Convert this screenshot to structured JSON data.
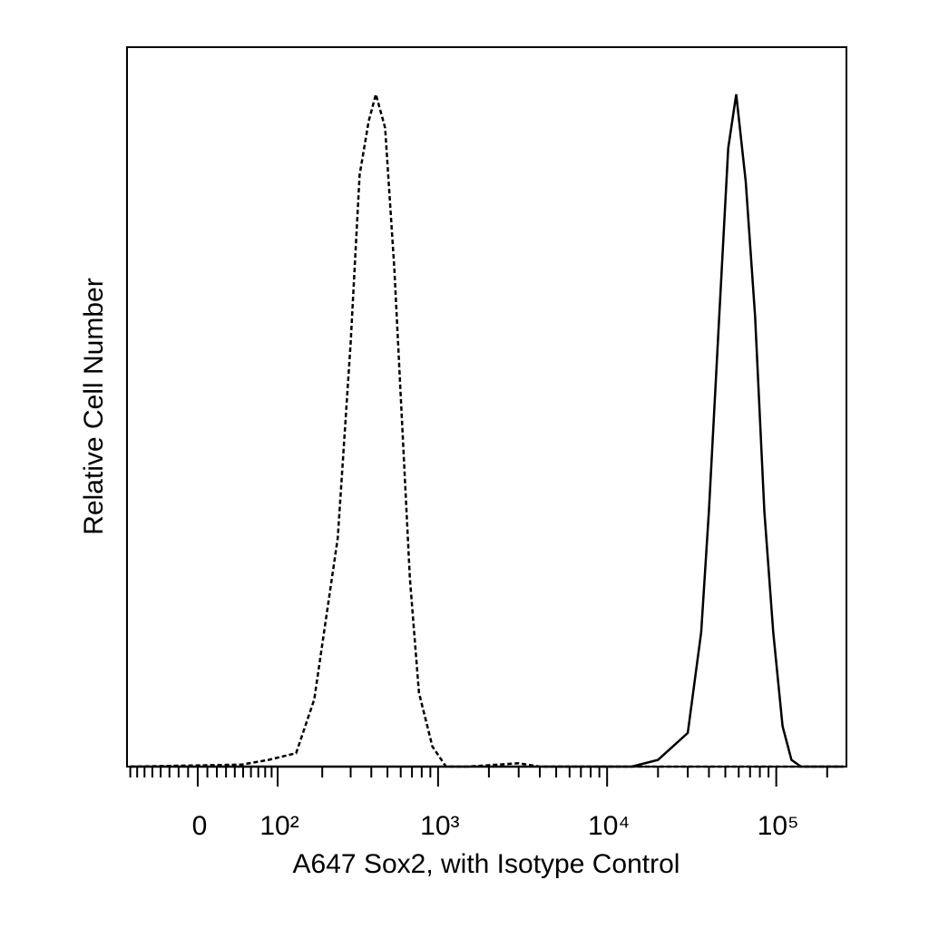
{
  "chart_data": {
    "type": "line",
    "xlabel": "A647 Sox2, with Isotype Control",
    "ylabel": "Relative Cell Number",
    "xscale": "biexponential",
    "xlim": [
      -85,
      260000
    ],
    "ylim": [
      0,
      107
    ],
    "xticks": [
      {
        "value": 0,
        "label": "0"
      },
      {
        "value": 100,
        "label": "10²"
      },
      {
        "value": 1000,
        "label": "10³"
      },
      {
        "value": 10000,
        "label": "10⁴"
      },
      {
        "value": 100000,
        "label": "10⁵"
      }
    ],
    "xminorticks": [
      -80,
      -70,
      -60,
      -50,
      -40,
      -30,
      -20,
      -10,
      10,
      20,
      30,
      40,
      50,
      60,
      70,
      80,
      90,
      200,
      300,
      400,
      500,
      600,
      700,
      800,
      900,
      2000,
      3000,
      4000,
      5000,
      6000,
      7000,
      8000,
      9000,
      20000,
      30000,
      40000,
      50000,
      60000,
      70000,
      80000,
      90000,
      200000
    ],
    "series": [
      {
        "color": "#000000",
        "dash": true,
        "x": [
          -80,
          48,
          85,
          135,
          178,
          250,
          300,
          340,
          386,
          426,
          484,
          550,
          680,
          770,
          925,
          1115,
          1500,
          3000,
          4000,
          250000
        ],
        "values": [
          0,
          0.3,
          1,
          2,
          10,
          34,
          63,
          88,
          96,
          100,
          95,
          74,
          28,
          11,
          3,
          0,
          0,
          0.5,
          0,
          0
        ]
      },
      {
        "color": "#000000",
        "dash": false,
        "x": [
          -80,
          14000,
          20000,
          30000,
          36000,
          40000,
          46000,
          52000,
          58000,
          66000,
          75000,
          85000,
          96000,
          109000,
          123000,
          140000,
          250000
        ],
        "values": [
          0,
          0,
          1,
          5,
          20,
          38,
          67,
          92,
          100,
          87,
          67,
          38,
          20,
          6,
          1,
          0,
          0
        ]
      }
    ]
  }
}
